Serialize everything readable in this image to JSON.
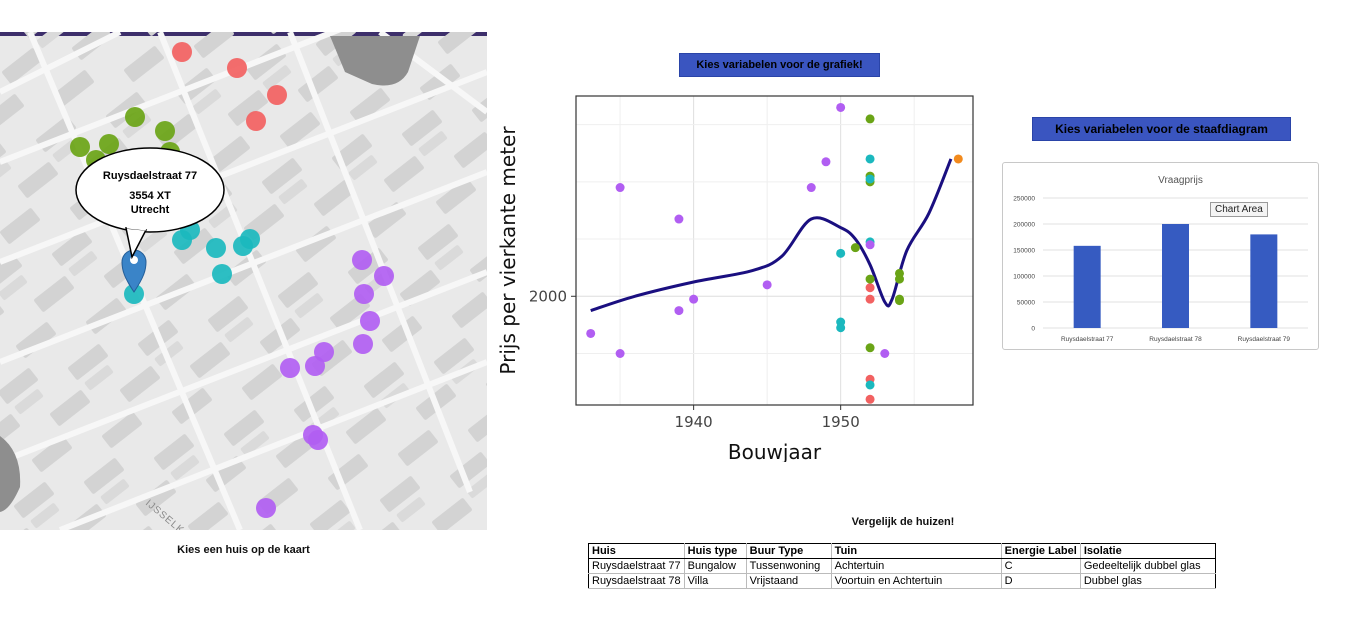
{
  "map": {
    "caption": "Kies een huis op de kaart",
    "popup": {
      "street": "Ruysdaelstraat 77",
      "postcode": "3554 XT",
      "city": "Utrecht"
    },
    "street_label": "IJSSELK",
    "marker_icon": "map-pin-icon",
    "colors": {
      "red": "#f26161",
      "green": "#6aa416",
      "teal": "#1bb8be",
      "purple": "#b15ef2"
    }
  },
  "buttons": {
    "grafiek": "Kies variabelen voor de grafiek!",
    "staafdiagram": "Kies variabelen voor de staafdiagram"
  },
  "chart_data": [
    {
      "type": "scatter",
      "xlabel": "Bouwjaar",
      "ylabel": "Prijs per vierkante meter",
      "x_ticks": [
        1940,
        1950
      ],
      "y_ticks": [
        2000
      ],
      "xlim": [
        1932,
        1959
      ],
      "ylim": [
        1620,
        2700
      ],
      "grid": true,
      "series": [
        {
          "color": "#f26161",
          "points": [
            [
              1952,
              2030
            ],
            [
              1952,
              1990
            ],
            [
              1952,
              1710
            ],
            [
              1952,
              1640
            ]
          ]
        },
        {
          "color": "#6aa416",
          "points": [
            [
              1952,
              2620
            ],
            [
              1952,
              2420
            ],
            [
              1952,
              2400
            ],
            [
              1951,
              2170
            ],
            [
              1952,
              2060
            ],
            [
              1952,
              1820
            ],
            [
              1954,
              2080
            ],
            [
              1954,
              2060
            ],
            [
              1954,
              1990
            ],
            [
              1954,
              1985
            ]
          ]
        },
        {
          "color": "#1bb8be",
          "points": [
            [
              1952,
              2480
            ],
            [
              1952,
              2410
            ],
            [
              1952,
              2190
            ],
            [
              1950,
              2150
            ],
            [
              1950,
              1910
            ],
            [
              1950,
              1890
            ],
            [
              1952,
              1690
            ]
          ]
        },
        {
          "color": "#b15ef2",
          "points": [
            [
              1935,
              2380
            ],
            [
              1939,
              2270
            ],
            [
              1933,
              1870
            ],
            [
              1935,
              1800
            ],
            [
              1939,
              1950
            ],
            [
              1940,
              1990
            ],
            [
              1945,
              2040
            ],
            [
              1948,
              2380
            ],
            [
              1949,
              2470
            ],
            [
              1950,
              2660
            ],
            [
              1952,
              2180
            ],
            [
              1953,
              1800
            ]
          ]
        },
        {
          "color": "#f28a1d",
          "points": [
            [
              1958,
              2480
            ]
          ]
        }
      ],
      "smooth_line": {
        "color": "#1a0f80",
        "points": [
          [
            1933,
            1950
          ],
          [
            1936,
            2000
          ],
          [
            1940,
            2050
          ],
          [
            1944,
            2090
          ],
          [
            1946,
            2140
          ],
          [
            1948,
            2270
          ],
          [
            1950,
            2240
          ],
          [
            1951,
            2200
          ],
          [
            1952,
            2110
          ],
          [
            1953,
            1980
          ],
          [
            1953.5,
            1990
          ],
          [
            1954.5,
            2160
          ],
          [
            1956,
            2290
          ],
          [
            1957.5,
            2480
          ]
        ]
      }
    },
    {
      "type": "bar",
      "title": "Vraagprijs",
      "categories": [
        "Ruysdaelstraat 77",
        "Ruysdaelstraat 78",
        "Ruysdaelstraat 79"
      ],
      "values": [
        158000,
        200000,
        180000
      ],
      "ylim": [
        0,
        250000
      ],
      "y_ticks": [
        0,
        50000,
        100000,
        150000,
        200000,
        250000
      ],
      "bar_color": "#365bc1",
      "tooltip": "Chart Area"
    }
  ],
  "table": {
    "title": "Vergelijk de huizen!",
    "headers": [
      "Huis",
      "Huis type",
      "Buur Type",
      "Tuin",
      "Energie Label",
      "Isolatie"
    ],
    "rows": [
      [
        "Ruysdaelstraat 77",
        "Bungalow",
        "Tussenwoning",
        "Achtertuin",
        "C",
        "Gedeeltelijk dubbel glas"
      ],
      [
        "Ruysdaelstraat 78",
        "Villa",
        "Vrijstaand",
        "Voortuin en Achtertuin",
        "D",
        "Dubbel glas"
      ]
    ]
  }
}
